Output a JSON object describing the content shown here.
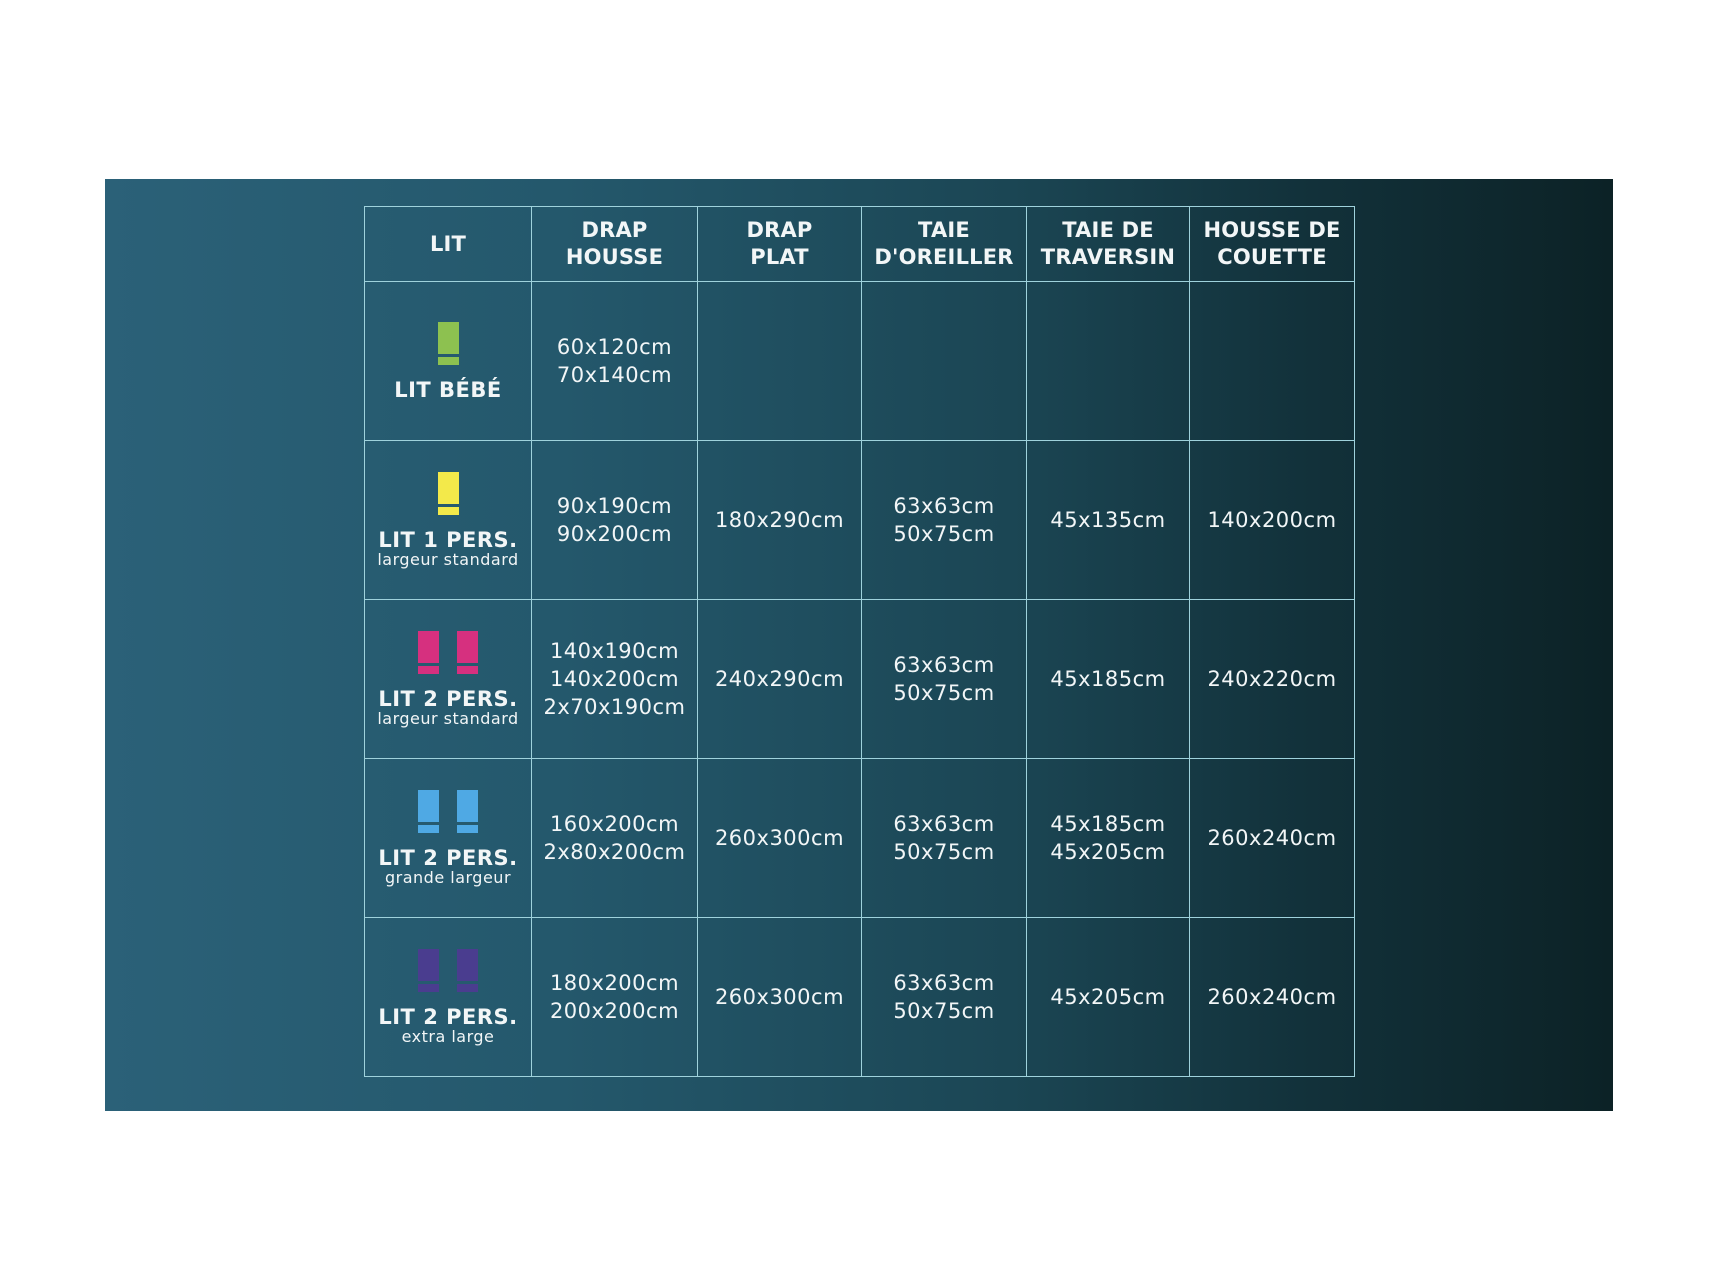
{
  "headers": [
    "LIT",
    "DRAP\nHOUSSE",
    "DRAP\nPLAT",
    "TAIE\nD'OREILLER",
    "TAIE DE\nTRAVERSIN",
    "HOUSSE DE\nCOUETTE"
  ],
  "header_lines": [
    [
      "LIT"
    ],
    [
      "DRAP",
      "HOUSSE"
    ],
    [
      "DRAP",
      "PLAT"
    ],
    [
      "TAIE",
      "D'OREILLER"
    ],
    [
      "TAIE DE",
      "TRAVERSIN"
    ],
    [
      "HOUSSE DE",
      "COUETTE"
    ]
  ],
  "rows": [
    {
      "name": "LIT BÉBÉ",
      "sub": "",
      "icon": "single-bed-icon",
      "icon_count": 1,
      "color": "#8dc150",
      "cells": [
        [
          "60x120cm",
          "70x140cm"
        ],
        [],
        [],
        [],
        []
      ]
    },
    {
      "name": "LIT 1 PERS.",
      "sub": "largeur standard",
      "icon": "single-bed-icon",
      "icon_count": 1,
      "color": "#f3e94a",
      "cells": [
        [
          "90x190cm",
          "90x200cm"
        ],
        [
          "180x290cm"
        ],
        [
          "63x63cm",
          "50x75cm"
        ],
        [
          "45x135cm"
        ],
        [
          "140x200cm"
        ]
      ]
    },
    {
      "name": "LIT 2 PERS.",
      "sub": "largeur standard",
      "icon": "double-bed-icon",
      "icon_count": 2,
      "color": "#d6307f",
      "cells": [
        [
          "140x190cm",
          "140x200cm",
          "2x70x190cm"
        ],
        [
          "240x290cm"
        ],
        [
          "63x63cm",
          "50x75cm"
        ],
        [
          "45x185cm"
        ],
        [
          "240x220cm"
        ]
      ]
    },
    {
      "name": "LIT 2 PERS.",
      "sub": "grande largeur",
      "icon": "double-bed-icon",
      "icon_count": 2,
      "color": "#4fa9e4",
      "cells": [
        [
          "160x200cm",
          "2x80x200cm"
        ],
        [
          "260x300cm"
        ],
        [
          "63x63cm",
          "50x75cm"
        ],
        [
          "45x185cm",
          "45x205cm"
        ],
        [
          "260x240cm"
        ]
      ]
    },
    {
      "name": "LIT 2 PERS.",
      "sub": "extra large",
      "icon": "double-bed-icon",
      "icon_count": 2,
      "color": "#4a3d8f",
      "cells": [
        [
          "180x200cm",
          "200x200cm"
        ],
        [
          "260x300cm"
        ],
        [
          "63x63cm",
          "50x75cm"
        ],
        [
          "45x205cm"
        ],
        [
          "260x240cm"
        ]
      ]
    }
  ]
}
